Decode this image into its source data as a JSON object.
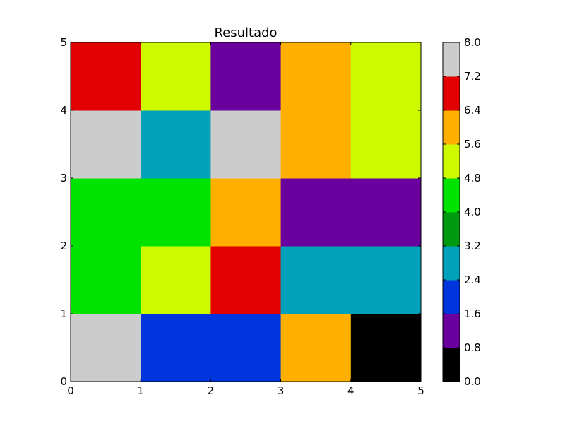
{
  "chart_data": {
    "type": "heatmap",
    "title": "Resultado",
    "xlabel": "",
    "ylabel": "",
    "xlim": [
      0,
      5
    ],
    "ylim": [
      0,
      5
    ],
    "x_ticks": [
      "0",
      "1",
      "2",
      "3",
      "4",
      "5"
    ],
    "y_ticks": [
      "0",
      "1",
      "2",
      "3",
      "4",
      "5"
    ],
    "grid": false,
    "rows_bottom_to_top": [
      [
        7.6,
        2.0,
        2.0,
        6.0,
        0.4
      ],
      [
        4.4,
        5.2,
        6.8,
        2.8,
        2.8
      ],
      [
        4.4,
        4.4,
        6.0,
        1.2,
        1.2
      ],
      [
        7.6,
        2.8,
        7.6,
        6.0,
        5.2
      ],
      [
        6.8,
        5.2,
        1.2,
        6.0,
        5.2
      ]
    ],
    "colorbar": {
      "ticks": [
        "0.0",
        "0.8",
        "1.6",
        "2.4",
        "3.2",
        "4.0",
        "4.8",
        "5.6",
        "6.4",
        "7.2",
        "8.0"
      ],
      "levels": [
        0.0,
        0.8,
        1.6,
        2.4,
        3.2,
        4.0,
        4.8,
        5.6,
        6.4,
        7.2,
        8.0
      ],
      "colors": [
        "#000000",
        "#6a009e",
        "#0034dc",
        "#00a2bb",
        "#009a11",
        "#00e200",
        "#cefa00",
        "#ffaf00",
        "#e20000",
        "#cccccc"
      ]
    }
  }
}
